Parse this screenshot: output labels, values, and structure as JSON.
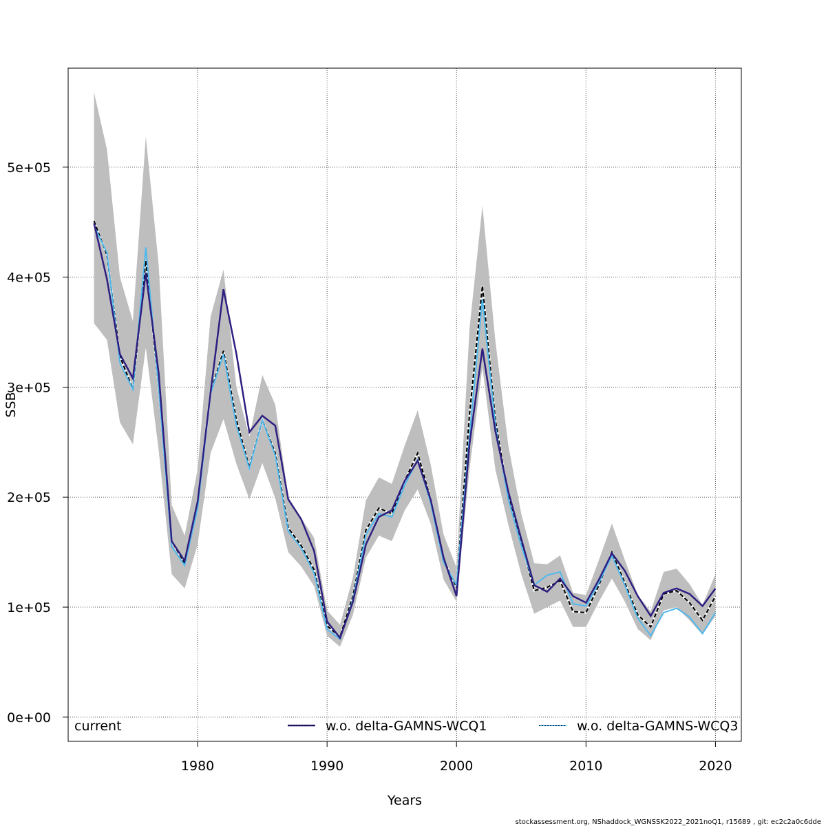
{
  "chart_data": {
    "type": "line",
    "xlabel": "Years",
    "ylabel": "SSB",
    "xlim": [
      1970,
      2022
    ],
    "ylim": [
      -22000,
      590000
    ],
    "x_ticks": [
      1980,
      1990,
      2000,
      2010,
      2020
    ],
    "y_ticks": [
      0,
      100000,
      200000,
      300000,
      400000,
      500000
    ],
    "y_tick_labels": [
      "0e+00",
      "1e+05",
      "2e+05",
      "3e+05",
      "4e+05",
      "5e+05"
    ],
    "grid": true,
    "legend_position": "bottom",
    "x": [
      1972,
      1973,
      1974,
      1975,
      1976,
      1977,
      1978,
      1979,
      1980,
      1981,
      1982,
      1983,
      1984,
      1985,
      1986,
      1987,
      1988,
      1989,
      1990,
      1991,
      1992,
      1993,
      1994,
      1995,
      1996,
      1997,
      1998,
      1999,
      2000,
      2001,
      2002,
      2003,
      2004,
      2005,
      2006,
      2007,
      2008,
      2009,
      2010,
      2011,
      2012,
      2013,
      2014,
      2015,
      2016,
      2017,
      2018,
      2019,
      2020
    ],
    "series": [
      {
        "name": "current",
        "color": "#000000",
        "style": "dashed",
        "values": [
          451000,
          420000,
          328000,
          298000,
          415000,
          300000,
          160000,
          140000,
          195000,
          295000,
          333000,
          270000,
          227000,
          270000,
          240000,
          172000,
          156000,
          134000,
          83000,
          73000,
          110000,
          170000,
          190000,
          185000,
          215000,
          240000,
          198000,
          143000,
          118000,
          275000,
          392000,
          270000,
          200000,
          160000,
          115000,
          118000,
          124000,
          96000,
          95000,
          120000,
          150000,
          122000,
          93000,
          82000,
          112000,
          115000,
          104000,
          88000,
          110000
        ]
      },
      {
        "name": "w.o. delta-GAMNS-WCQ1",
        "color": "#2e1f80",
        "style": "solid",
        "values": [
          449000,
          398000,
          330000,
          308000,
          404000,
          312000,
          160000,
          142000,
          196000,
          295000,
          389000,
          330000,
          259000,
          274000,
          265000,
          198000,
          180000,
          151000,
          87000,
          72000,
          105000,
          157000,
          182000,
          188000,
          215000,
          233000,
          198000,
          145000,
          110000,
          248000,
          335000,
          260000,
          205000,
          162000,
          120000,
          114000,
          126000,
          110000,
          104000,
          125000,
          149000,
          133000,
          110000,
          92000,
          113000,
          117000,
          112000,
          101000,
          117000
        ]
      },
      {
        "name": "w.o. delta-GAMNS-WCQ3",
        "color": "#4fb9ee",
        "style": "solid",
        "values": [
          447000,
          422000,
          322000,
          298000,
          427000,
          299000,
          155000,
          138000,
          190000,
          294000,
          330000,
          265000,
          226000,
          270000,
          238000,
          169000,
          154000,
          131000,
          80000,
          71000,
          107000,
          166000,
          185000,
          182000,
          211000,
          234000,
          195000,
          141000,
          120000,
          255000,
          380000,
          265000,
          198000,
          156000,
          120000,
          129000,
          132000,
          103000,
          101000,
          122000,
          147000,
          120000,
          90000,
          74000,
          95000,
          99000,
          91000,
          76000,
          95000
        ]
      }
    ],
    "band": {
      "color": "#bebebe",
      "lower": [
        358000,
        343000,
        268000,
        248000,
        336000,
        242000,
        130000,
        117000,
        157000,
        240000,
        271000,
        230000,
        198000,
        231000,
        199000,
        150000,
        137000,
        119000,
        74000,
        64000,
        93000,
        145000,
        165000,
        160000,
        188000,
        207000,
        176000,
        125000,
        105000,
        225000,
        318000,
        225000,
        175000,
        130000,
        94000,
        100000,
        106000,
        82000,
        82000,
        105000,
        126000,
        105000,
        80000,
        70000,
        97000,
        100000,
        88000,
        75000,
        92000
      ],
      "upper": [
        568000,
        516000,
        400000,
        360000,
        528000,
        410000,
        193000,
        165000,
        225000,
        364000,
        407000,
        300000,
        255000,
        311000,
        284000,
        200000,
        181000,
        163000,
        97000,
        84000,
        127000,
        197000,
        218000,
        212000,
        247000,
        279000,
        230000,
        166000,
        136000,
        353000,
        465000,
        342000,
        247000,
        185000,
        140000,
        139000,
        147000,
        113000,
        111000,
        143000,
        176000,
        143000,
        111000,
        96000,
        132000,
        135000,
        121000,
        102000,
        130000
      ]
    }
  },
  "legend": {
    "items": [
      "current",
      "w.o. delta-GAMNS-WCQ1",
      "w.o. delta-GAMNS-WCQ3"
    ]
  },
  "footer": {
    "text": "stockassessment.org, NShaddock_WGNSSK2022_2021noQ1, r15689 , git: ec2c2a0c6dde"
  }
}
